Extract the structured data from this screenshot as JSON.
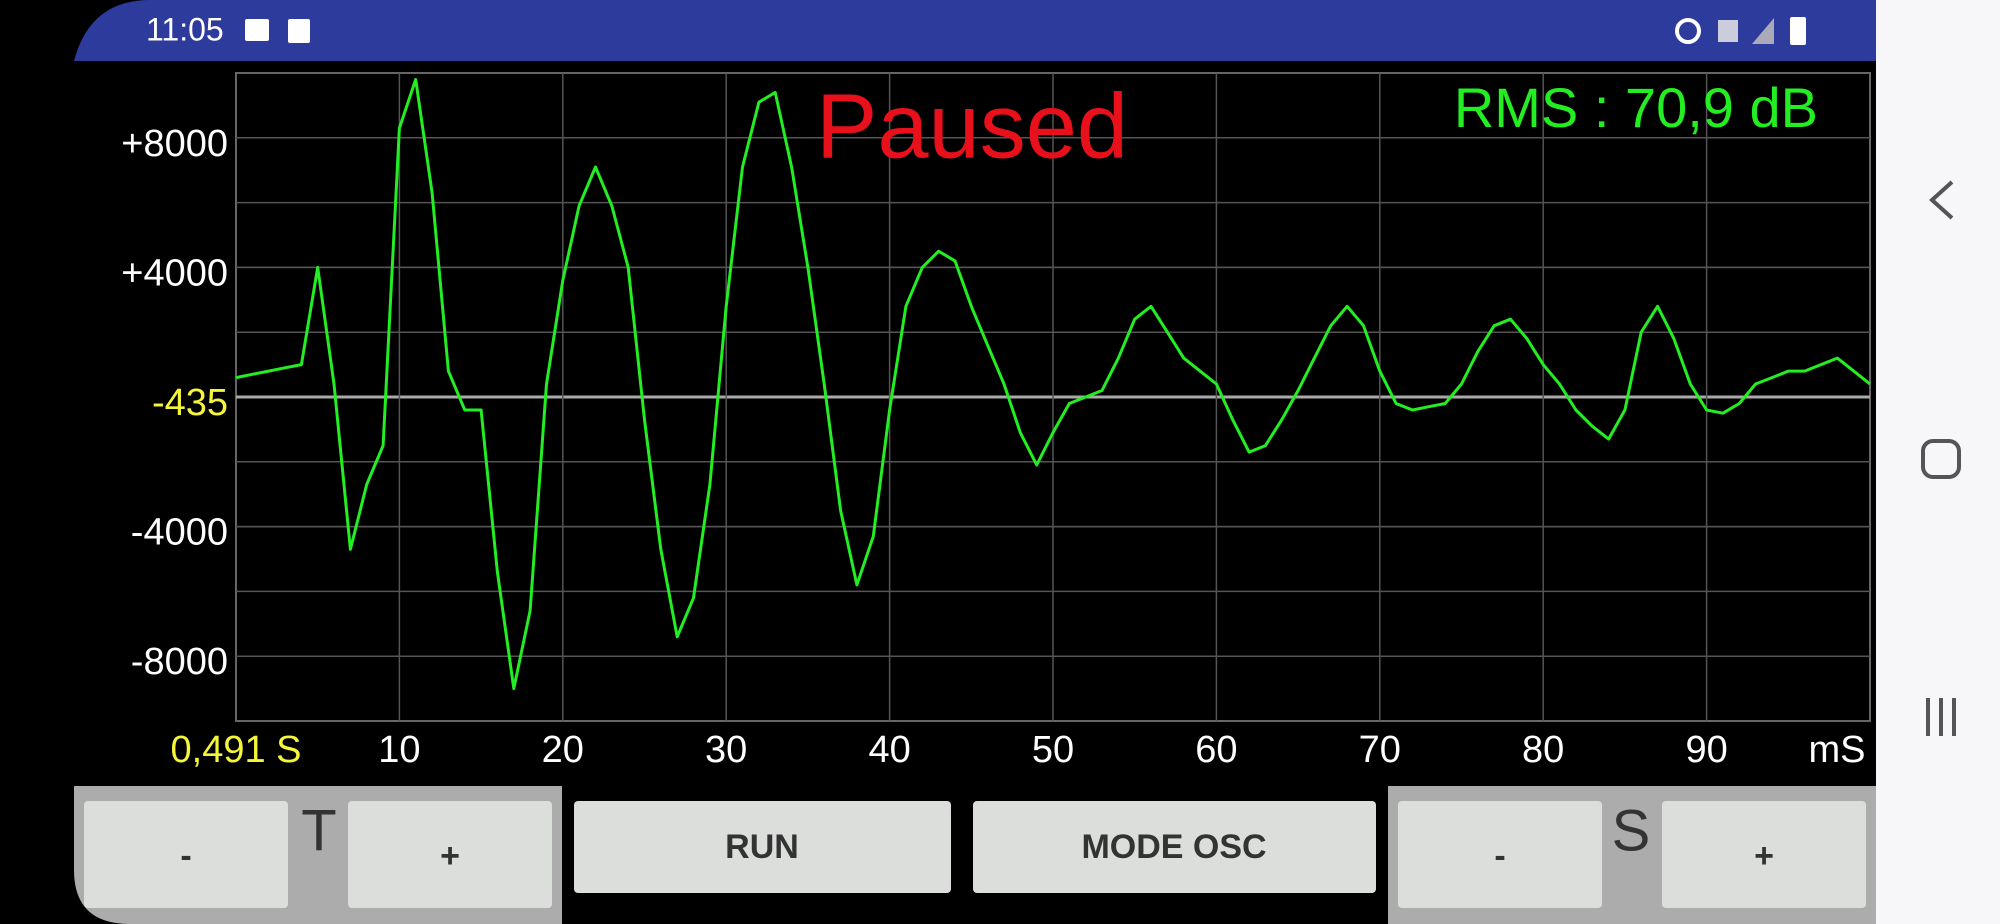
{
  "status_bar": {
    "time": "11:05"
  },
  "chart_data": {
    "type": "line",
    "x": [
      0,
      1,
      2,
      3,
      4,
      5,
      6,
      7,
      8,
      9,
      10,
      11,
      12,
      13,
      14,
      15,
      16,
      17,
      18,
      19,
      20,
      21,
      22,
      23,
      24,
      25,
      26,
      27,
      28,
      29,
      30,
      31,
      32,
      33,
      34,
      35,
      36,
      37,
      38,
      39,
      40,
      41,
      42,
      43,
      44,
      45,
      46,
      47,
      48,
      49,
      50,
      51,
      52,
      53,
      54,
      55,
      56,
      57,
      58,
      59,
      60,
      61,
      62,
      63,
      64,
      65,
      66,
      67,
      68,
      69,
      70,
      71,
      72,
      73,
      74,
      75,
      76,
      77,
      78,
      79,
      80,
      81,
      82,
      83,
      84,
      85,
      86,
      87,
      88,
      89,
      90,
      91,
      92,
      93,
      94,
      95,
      96,
      97,
      98,
      99,
      100
    ],
    "series": [
      {
        "color": "#22ee22",
        "values": [
          600,
          700,
          800,
          900,
          1000,
          4000,
          400,
          -4700,
          -2700,
          -1500,
          8300,
          9800,
          6300,
          800,
          -400,
          -400,
          -5400,
          -9000,
          -6600,
          400,
          3600,
          5900,
          7100,
          5900,
          4000,
          -700,
          -4700,
          -7400,
          -6200,
          -2700,
          2800,
          7100,
          9100,
          9400,
          7100,
          4000,
          400,
          -3500,
          -5800,
          -4300,
          -400,
          2800,
          4000,
          4500,
          4200,
          2800,
          1600,
          400,
          -1100,
          -2100,
          -1100,
          -200,
          0,
          200,
          1200,
          2400,
          2800,
          2000,
          1200,
          800,
          400,
          -700,
          -1700,
          -1500,
          -700,
          200,
          1200,
          2200,
          2800,
          2200,
          800,
          -200,
          -400,
          -300,
          -200,
          400,
          1400,
          2200,
          2400,
          1800,
          1000,
          400,
          -400,
          -900,
          -1300,
          -400,
          2000,
          2800,
          1800,
          400,
          -400,
          -500,
          -200,
          400,
          600,
          800,
          800,
          1000,
          1200,
          800,
          400
        ]
      }
    ],
    "xlim": [
      0,
      100
    ],
    "ylim": [
      -10000,
      10000
    ],
    "xticks": [
      10,
      20,
      30,
      40,
      50,
      60,
      70,
      80,
      90
    ],
    "yticks": [
      {
        "value": 8000,
        "label": "+8000"
      },
      {
        "value": 4000,
        "label": "+4000"
      },
      {
        "value": -4000,
        "label": "-4000"
      },
      {
        "value": -8000,
        "label": "-8000"
      }
    ],
    "x_unit": "mS",
    "grid": true
  },
  "overlay": {
    "status": "Paused",
    "rms": "RMS : 70,9 dB",
    "offset": "-435",
    "time_base": "0,491 S"
  },
  "controls": {
    "time_minus": "-",
    "time_label": "T",
    "time_plus": "+",
    "run": "RUN",
    "mode": "MODE OSC",
    "scale_minus": "-",
    "scale_label": "S",
    "scale_plus": "+"
  }
}
